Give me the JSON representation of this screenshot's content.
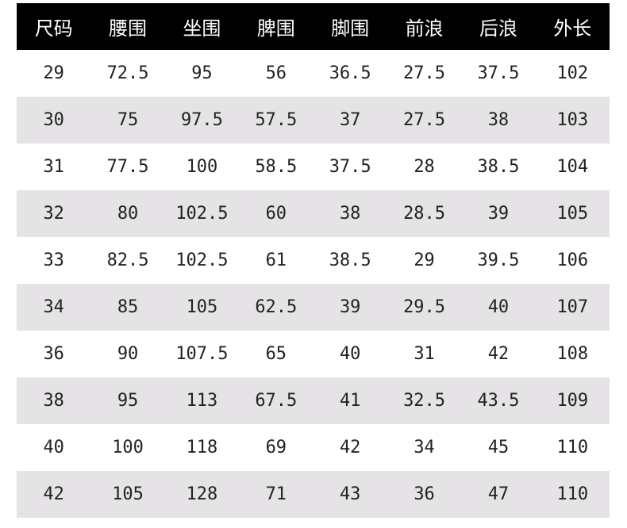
{
  "table": {
    "headers": [
      "尺码",
      "腰围",
      "坐围",
      "脾围",
      "脚围",
      "前浪",
      "后浪",
      "外长"
    ],
    "rows": [
      [
        "29",
        "72.5",
        "95",
        "56",
        "36.5",
        "27.5",
        "37.5",
        "102"
      ],
      [
        "30",
        "75",
        "97.5",
        "57.5",
        "37",
        "27.5",
        "38",
        "103"
      ],
      [
        "31",
        "77.5",
        "100",
        "58.5",
        "37.5",
        "28",
        "38.5",
        "104"
      ],
      [
        "32",
        "80",
        "102.5",
        "60",
        "38",
        "28.5",
        "39",
        "105"
      ],
      [
        "33",
        "82.5",
        "102.5",
        "61",
        "38.5",
        "29",
        "39.5",
        "106"
      ],
      [
        "34",
        "85",
        "105",
        "62.5",
        "39",
        "29.5",
        "40",
        "107"
      ],
      [
        "36",
        "90",
        "107.5",
        "65",
        "40",
        "31",
        "42",
        "108"
      ],
      [
        "38",
        "95",
        "113",
        "67.5",
        "41",
        "32.5",
        "43.5",
        "109"
      ],
      [
        "40",
        "100",
        "118",
        "69",
        "42",
        "34",
        "45",
        "110"
      ],
      [
        "42",
        "105",
        "128",
        "71",
        "43",
        "36",
        "47",
        "110"
      ]
    ]
  },
  "colors": {
    "header_background": "#000000",
    "header_text": "#ffffff",
    "stripe_row": "#e6e3e6",
    "plain_row": "#ffffff",
    "cell_text": "#222222"
  }
}
